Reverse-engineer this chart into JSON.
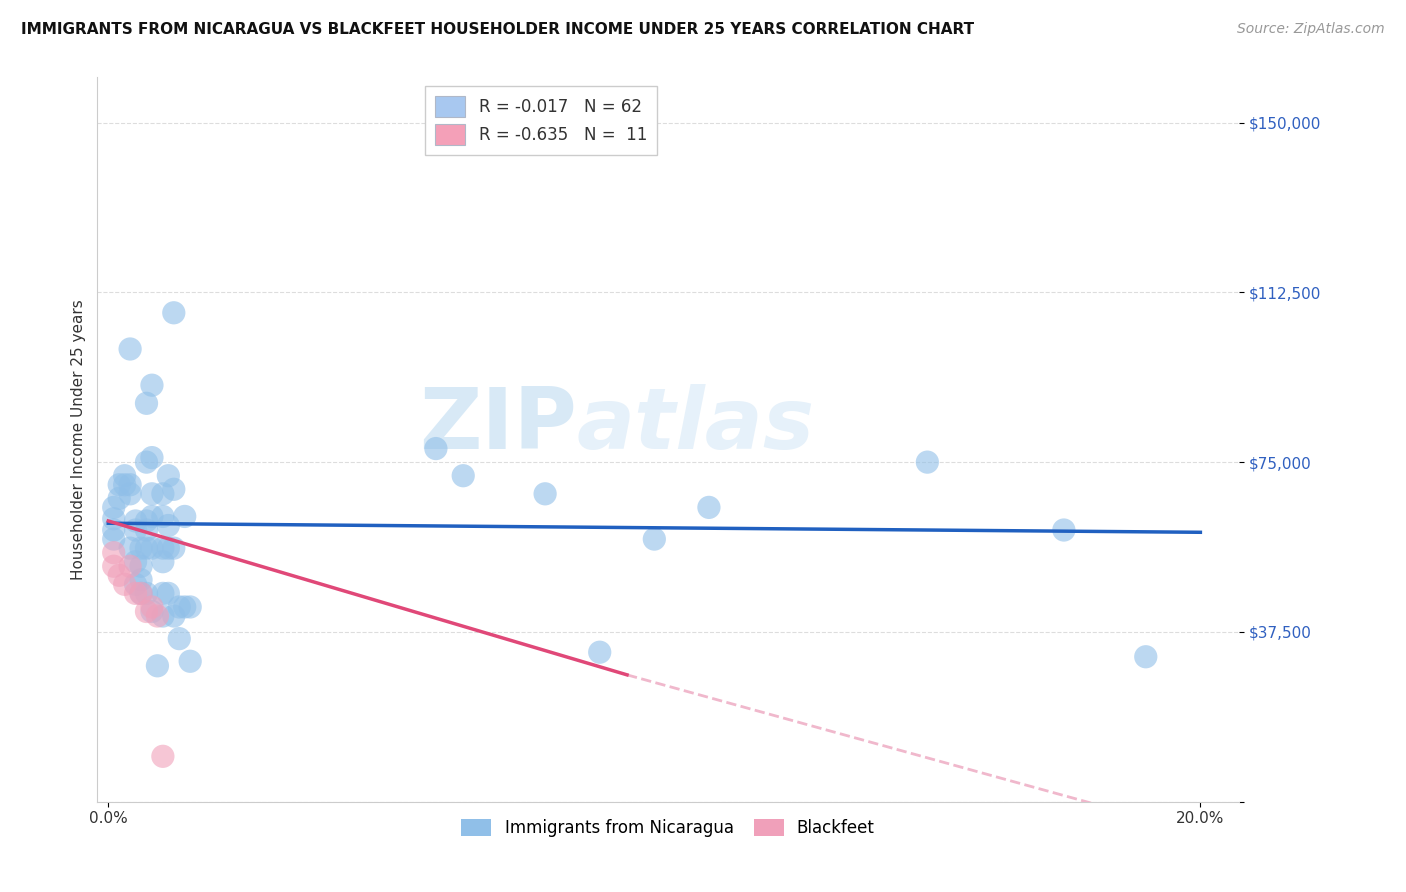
{
  "title": "IMMIGRANTS FROM NICARAGUA VS BLACKFEET HOUSEHOLDER INCOME UNDER 25 YEARS CORRELATION CHART",
  "source": "Source: ZipAtlas.com",
  "ylabel": "Householder Income Under 25 years",
  "watermark_zip": "ZIP",
  "watermark_atlas": "atlas",
  "legend_line1_text": "R = -0.017   N = 62",
  "legend_line2_text": "R = -0.635   N =  11",
  "legend_color1": "#a8c8f0",
  "legend_color2": "#f4a0b8",
  "blue_scatter": [
    [
      0.001,
      62500
    ],
    [
      0.001,
      65000
    ],
    [
      0.001,
      60000
    ],
    [
      0.001,
      58000
    ],
    [
      0.002,
      70000
    ],
    [
      0.002,
      67000
    ],
    [
      0.003,
      72000
    ],
    [
      0.003,
      70000
    ],
    [
      0.004,
      100000
    ],
    [
      0.004,
      70000
    ],
    [
      0.004,
      68000
    ],
    [
      0.004,
      56000
    ],
    [
      0.005,
      62000
    ],
    [
      0.005,
      60000
    ],
    [
      0.005,
      53000
    ],
    [
      0.005,
      48000
    ],
    [
      0.006,
      56000
    ],
    [
      0.006,
      52000
    ],
    [
      0.006,
      49000
    ],
    [
      0.006,
      46000
    ],
    [
      0.007,
      88000
    ],
    [
      0.007,
      75000
    ],
    [
      0.007,
      62000
    ],
    [
      0.007,
      60000
    ],
    [
      0.007,
      56000
    ],
    [
      0.007,
      46000
    ],
    [
      0.008,
      92000
    ],
    [
      0.008,
      76000
    ],
    [
      0.008,
      68000
    ],
    [
      0.008,
      63000
    ],
    [
      0.008,
      56000
    ],
    [
      0.008,
      42000
    ],
    [
      0.009,
      30000
    ],
    [
      0.01,
      68000
    ],
    [
      0.01,
      63000
    ],
    [
      0.01,
      56000
    ],
    [
      0.01,
      53000
    ],
    [
      0.01,
      46000
    ],
    [
      0.01,
      41000
    ],
    [
      0.011,
      72000
    ],
    [
      0.011,
      61000
    ],
    [
      0.011,
      56000
    ],
    [
      0.011,
      46000
    ],
    [
      0.012,
      108000
    ],
    [
      0.012,
      69000
    ],
    [
      0.012,
      56000
    ],
    [
      0.012,
      41000
    ],
    [
      0.013,
      43000
    ],
    [
      0.013,
      36000
    ],
    [
      0.014,
      63000
    ],
    [
      0.014,
      43000
    ],
    [
      0.015,
      43000
    ],
    [
      0.015,
      31000
    ],
    [
      0.06,
      78000
    ],
    [
      0.065,
      72000
    ],
    [
      0.08,
      68000
    ],
    [
      0.09,
      33000
    ],
    [
      0.1,
      58000
    ],
    [
      0.11,
      65000
    ],
    [
      0.15,
      75000
    ],
    [
      0.175,
      60000
    ],
    [
      0.19,
      32000
    ]
  ],
  "pink_scatter": [
    [
      0.001,
      55000
    ],
    [
      0.001,
      52000
    ],
    [
      0.002,
      50000
    ],
    [
      0.003,
      48000
    ],
    [
      0.004,
      52000
    ],
    [
      0.005,
      46000
    ],
    [
      0.006,
      46000
    ],
    [
      0.007,
      42000
    ],
    [
      0.008,
      43000
    ],
    [
      0.009,
      41000
    ],
    [
      0.01,
      10000
    ]
  ],
  "blue_line": {
    "x": [
      0.0,
      0.2
    ],
    "y": [
      61500,
      59500
    ]
  },
  "pink_line_solid": {
    "x": [
      0.0,
      0.095
    ],
    "y": [
      62000,
      28000
    ]
  },
  "pink_line_dash": {
    "x": [
      0.095,
      0.215
    ],
    "y": [
      28000,
      -12000
    ]
  },
  "xlim": [
    -0.002,
    0.207
  ],
  "ylim": [
    0,
    160000
  ],
  "yticks": [
    0,
    37500,
    75000,
    112500,
    150000
  ],
  "ytick_labels": [
    "",
    "$37,500",
    "$75,000",
    "$112,500",
    "$150,000"
  ],
  "xtick_positions": [
    0.0,
    0.2
  ],
  "xtick_labels": [
    "0.0%",
    "20.0%"
  ],
  "grid_color": "#dddddd",
  "bg_color": "#ffffff",
  "blue_dot_color": "#90bfe8",
  "pink_dot_color": "#f0a0ba",
  "blue_line_color": "#2060c0",
  "pink_line_color": "#e04878",
  "pink_dash_color": "#f0b8cc",
  "title_fontsize": 11,
  "source_fontsize": 10,
  "tick_fontsize": 11,
  "ylabel_fontsize": 11
}
